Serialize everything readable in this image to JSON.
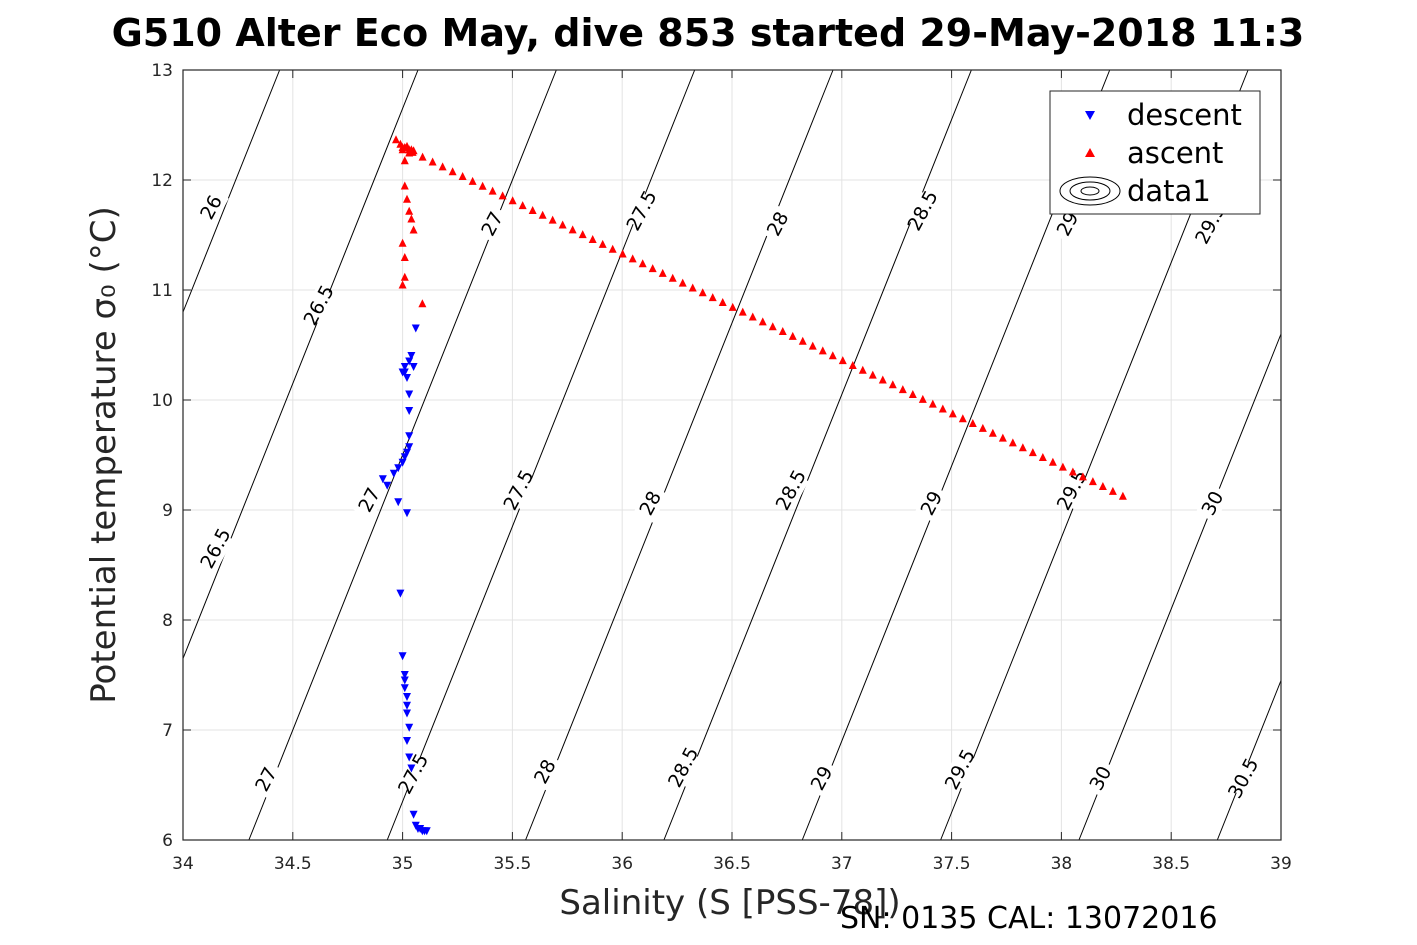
{
  "chart_data": {
    "type": "scatter",
    "title": "G510 Alter Eco May, dive 853 started 29-May-2018 11:3",
    "xlabel": "Salinity (S [PSS-78])",
    "ylabel": "Potential temperature σ₀ (°C)",
    "footer": "SN: 0135  CAL: 13072016",
    "xlim": [
      34,
      39
    ],
    "ylim": [
      6,
      13
    ],
    "x_ticks": [
      "34",
      "34.5",
      "35",
      "35.5",
      "36",
      "36.5",
      "37",
      "37.5",
      "38",
      "38.5",
      "39"
    ],
    "y_ticks": [
      "6",
      "7",
      "8",
      "9",
      "10",
      "11",
      "12",
      "13"
    ],
    "grid": true,
    "legend_position": "top-right",
    "legend": [
      "descent",
      "ascent",
      "data1"
    ],
    "series": [
      {
        "name": "descent",
        "marker": "triangle-down",
        "color": "#0000ff",
        "x": [
          35.11,
          35.1,
          35.09,
          35.08,
          35.07,
          35.06,
          35.05,
          35.04,
          35.03,
          35.02,
          35.03,
          35.02,
          35.02,
          35.02,
          35.01,
          35.01,
          35.01,
          35.0,
          34.99,
          35.02,
          34.98,
          34.93,
          34.91,
          34.96,
          34.98,
          35.0,
          35.01,
          35.02,
          35.03,
          35.03,
          35.03,
          35.03,
          35.02,
          35.01,
          35.0,
          35.01,
          35.03,
          35.04,
          35.06,
          35.05
        ],
        "y": [
          6.08,
          6.08,
          6.08,
          6.1,
          6.1,
          6.13,
          6.23,
          6.65,
          6.75,
          6.9,
          7.02,
          7.15,
          7.22,
          7.3,
          7.38,
          7.45,
          7.5,
          7.67,
          8.24,
          8.97,
          9.07,
          9.22,
          9.28,
          9.33,
          9.38,
          9.43,
          9.48,
          9.52,
          9.57,
          9.67,
          9.9,
          10.05,
          10.2,
          10.25,
          10.25,
          10.3,
          10.35,
          10.4,
          10.65,
          10.3
        ]
      },
      {
        "name": "ascent",
        "marker": "triangle-up",
        "color": "#ff0000",
        "x": [
          34.97,
          34.99,
          35.01,
          35.03,
          35.05,
          35.03,
          35.01,
          35.01,
          35.02,
          35.03,
          35.04,
          35.05,
          35.09,
          35.0,
          35.01,
          35.0,
          35.01,
          35.0,
          35.02,
          35.04
        ],
        "y": [
          12.37,
          12.33,
          12.3,
          12.28,
          12.27,
          12.25,
          12.18,
          11.95,
          11.83,
          11.72,
          11.65,
          11.55,
          10.88,
          11.43,
          11.12,
          11.05,
          11.3,
          12.28,
          12.31,
          12.28
        ],
        "trend_start": [
          35.0,
          12.3
        ],
        "trend_end": [
          38.28,
          9.13
        ]
      }
    ],
    "contours": [
      {
        "level": "26",
        "label_positions": [
          [
            34.13,
            11.75
          ]
        ]
      },
      {
        "level": "26.5",
        "label_positions": [
          [
            34.15,
            8.65
          ],
          [
            34.62,
            10.86
          ]
        ]
      },
      {
        "level": "27",
        "label_positions": [
          [
            34.38,
            6.55
          ],
          [
            34.85,
            9.09
          ],
          [
            35.41,
            11.6
          ]
        ]
      },
      {
        "level": "27.5",
        "label_positions": [
          [
            35.05,
            6.6
          ],
          [
            35.53,
            9.18
          ],
          [
            36.09,
            11.72
          ]
        ]
      },
      {
        "level": "28",
        "label_positions": [
          [
            35.65,
            6.62
          ],
          [
            36.13,
            9.06
          ],
          [
            36.71,
            11.6
          ]
        ]
      },
      {
        "level": "28.5",
        "label_positions": [
          [
            36.28,
            6.66
          ],
          [
            36.77,
            9.18
          ],
          [
            37.37,
            11.72
          ]
        ]
      },
      {
        "level": "29",
        "label_positions": [
          [
            36.91,
            6.56
          ],
          [
            37.41,
            9.06
          ],
          [
            38.03,
            11.6
          ]
        ]
      },
      {
        "level": "29.5",
        "label_positions": [
          [
            37.54,
            6.64
          ],
          [
            38.05,
            9.18
          ],
          [
            38.68,
            11.6
          ]
        ]
      },
      {
        "level": "30",
        "label_positions": [
          [
            38.18,
            6.56
          ],
          [
            38.69,
            9.06
          ]
        ]
      },
      {
        "level": "30.5",
        "label_positions": [
          [
            38.83,
            6.56
          ]
        ]
      }
    ]
  }
}
